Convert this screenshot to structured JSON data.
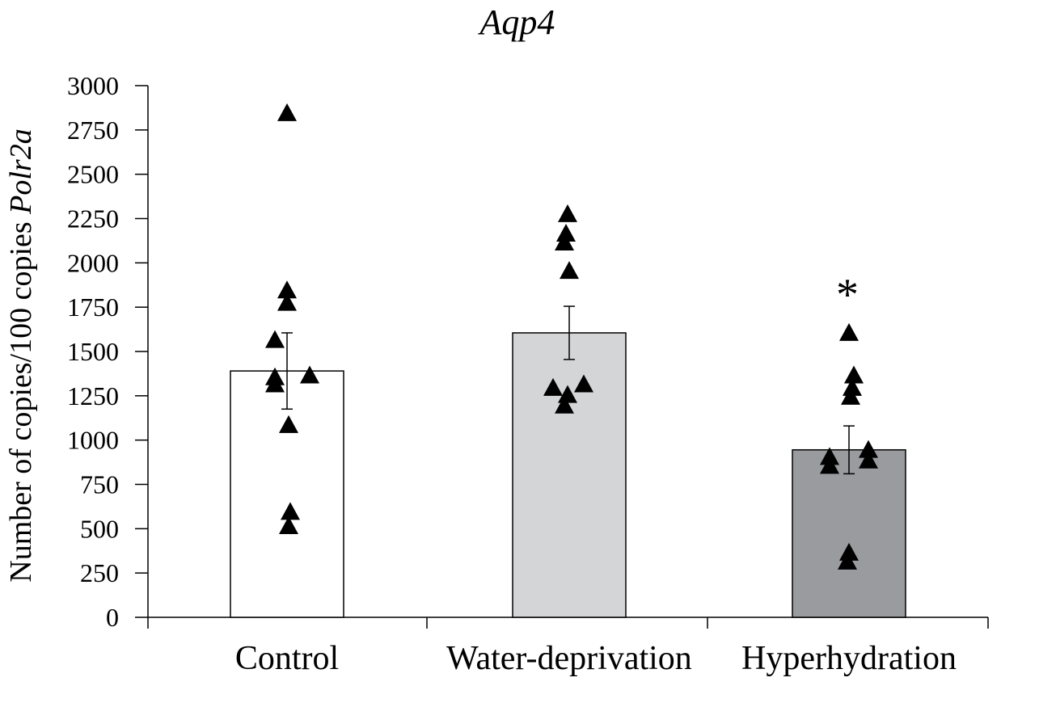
{
  "chart_data": {
    "type": "bar",
    "title": "Aqp4",
    "ylabel_prefix": "Number of copies/100 copies ",
    "ylabel_gene": "Polr2a",
    "xlabel": "",
    "ylim": [
      0,
      3000
    ],
    "yticks": [
      0,
      250,
      500,
      750,
      1000,
      1250,
      1500,
      1750,
      2000,
      2250,
      2500,
      2750,
      3000
    ],
    "grid": false,
    "categories": [
      "Control",
      "Water-deprivation",
      "Hyperhydration"
    ],
    "values": [
      1390,
      1605,
      945
    ],
    "errors": [
      215,
      150,
      135
    ],
    "bar_colors": [
      "#ffffff",
      "#d4d5d7",
      "#9a9b9e"
    ],
    "points": [
      [
        2850,
        1850,
        1780,
        1570,
        1370,
        1360,
        1320,
        1090,
        600,
        520
      ],
      [
        2280,
        2170,
        2120,
        1960,
        1320,
        1300,
        1260,
        1200
      ],
      [
        1610,
        1370,
        1300,
        1250,
        950,
        910,
        890,
        860,
        370,
        320
      ]
    ],
    "point_offsets": [
      [
        0,
        0,
        0,
        -15,
        28,
        -15,
        -15,
        2,
        4,
        2
      ],
      [
        -2,
        -4,
        -6,
        0,
        18,
        -20,
        -2,
        -6
      ],
      [
        0,
        6,
        4,
        2,
        24,
        -24,
        24,
        -24,
        0,
        -2
      ]
    ],
    "significance": [
      "",
      "",
      "*"
    ]
  }
}
